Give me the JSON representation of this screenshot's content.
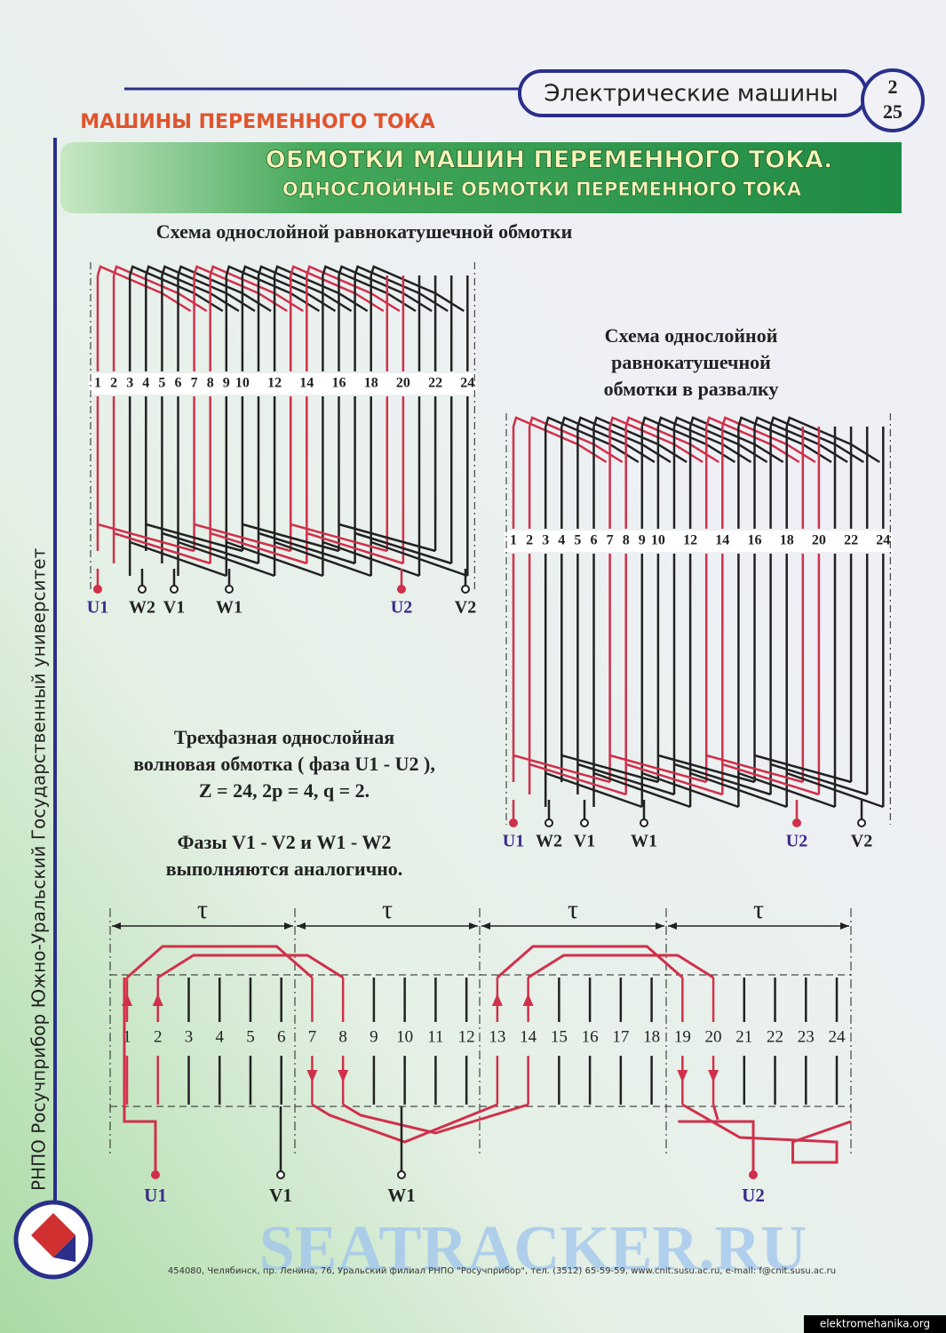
{
  "header": {
    "subject": "Электрические машины",
    "page_top": "2",
    "page_bottom": "25",
    "section": "МАШИНЫ ПЕРЕМЕННОГО ТОКА"
  },
  "banner": {
    "title": "ОБМОТКИ МАШИН ПЕРЕМЕННОГО ТОКА.",
    "subtitle": "ОДНОСЛОЙНЫЕ ОБМОТКИ ПЕРЕМЕННОГО ТОКА"
  },
  "diagram1": {
    "caption": "Схема однослойной равнокатушечной обмотки",
    "slots": [
      "1",
      "2",
      "3",
      "4",
      "5",
      "6",
      "7",
      "8",
      "9",
      "10",
      "12",
      "14",
      "16",
      "18",
      "20",
      "22",
      "24"
    ],
    "terminals": [
      "U1",
      "W2",
      "V1",
      "W1",
      "U2",
      "V2"
    ]
  },
  "diagram2": {
    "caption_lines": [
      "Схема однослойной",
      "равнокатушечной",
      "обмотки в развалку"
    ],
    "slots": [
      "1",
      "2",
      "3",
      "4",
      "5",
      "6",
      "7",
      "8",
      "9",
      "10",
      "12",
      "14",
      "16",
      "18",
      "20",
      "22",
      "24"
    ],
    "terminals": [
      "U1",
      "W2",
      "V1",
      "W1",
      "U2",
      "V2"
    ]
  },
  "description": {
    "lines": [
      "Трехфазная однослойная",
      "волновая обмотка ( фаза U1 - U2 ),",
      "Z = 24, 2p = 4, q = 2."
    ],
    "note_lines": [
      "Фазы V1 - V2 и W1 - W2",
      "выполняются аналогично."
    ]
  },
  "diagram3": {
    "pole_pitch": [
      "τ",
      "τ",
      "τ",
      "τ"
    ],
    "slots": [
      "1",
      "2",
      "3",
      "4",
      "5",
      "6",
      "7",
      "8",
      "9",
      "10",
      "11",
      "12",
      "13",
      "14",
      "15",
      "16",
      "17",
      "18",
      "19",
      "20",
      "21",
      "22",
      "23",
      "24"
    ],
    "terminals": [
      "U1",
      "V1",
      "W1",
      "U2"
    ]
  },
  "sidebar": "РНПО Росучприбор     Южно-Уральский Государственный университет",
  "footer": {
    "address": "454080, Челябинск, пр. Ленина, 76, Уральский филиал РНПО \"Росучприбор\", тел. (3512) 65-59-59, www.cnit.susu.ac.ru, e-mail: f@cnit.susu.ac.ru",
    "watermark": "SEATRACKER.RU",
    "source": "elektromehanika.org"
  }
}
